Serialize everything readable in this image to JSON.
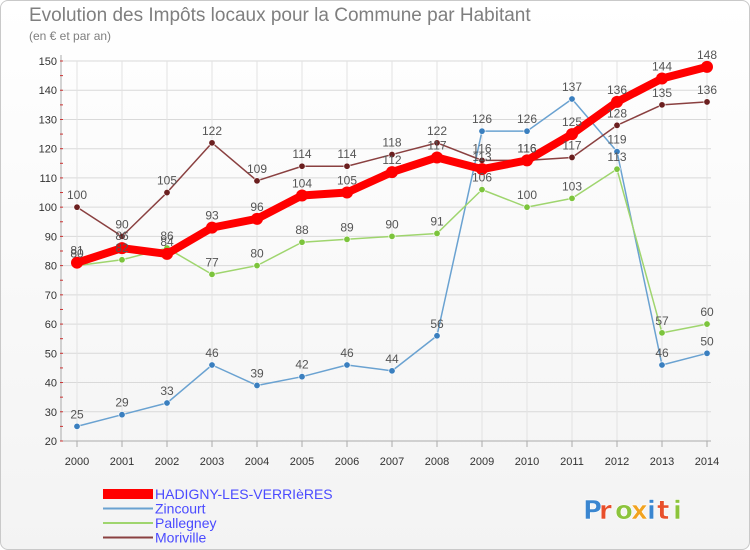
{
  "header": {
    "title": "Evolution des Impôts locaux pour la Commune par Habitant",
    "subtitle": "(en € et par an)"
  },
  "logo": {
    "text": "Proxiti",
    "colors": [
      "#3a86d0",
      "#e84f2b",
      "#8cc43c",
      "#f2a31f",
      "#3a86d0",
      "#e84f2b",
      "#8cc43c"
    ]
  },
  "chart_data": {
    "type": "line",
    "x": [
      2000,
      2001,
      2002,
      2003,
      2004,
      2005,
      2006,
      2007,
      2008,
      2009,
      2010,
      2011,
      2012,
      2013,
      2014
    ],
    "ylim": [
      20,
      150
    ],
    "yticks": [
      20,
      30,
      40,
      50,
      60,
      70,
      80,
      90,
      100,
      110,
      120,
      130,
      140,
      150
    ],
    "grid": true,
    "legend_position": "bottom-left",
    "series": [
      {
        "name": "HADIGNY-LES-VERRIèRES",
        "color": "#ff0000",
        "line_color": "#ff0000",
        "marker_color": "#ff0000",
        "emphasis": true,
        "values": [
          81,
          86,
          84,
          93,
          96,
          104,
          105,
          112,
          117,
          113,
          116,
          125,
          136,
          144,
          148
        ]
      },
      {
        "name": "Zincourt",
        "color": "#5b9bd5",
        "line_color": "#6aa2d1",
        "marker_color": "#3a7fbf",
        "values": [
          25,
          29,
          33,
          46,
          39,
          42,
          46,
          44,
          56,
          126,
          126,
          137,
          119,
          46,
          50
        ]
      },
      {
        "name": "Pallegney",
        "color": "#92d050",
        "line_color": "#9fd56e",
        "marker_color": "#7cc43c",
        "values": [
          80,
          82,
          86,
          77,
          80,
          88,
          89,
          90,
          91,
          106,
          100,
          103,
          113,
          57,
          60
        ]
      },
      {
        "name": "Moriville",
        "color": "#7f3f3f",
        "line_color": "#8a4040",
        "marker_color": "#6b1f1f",
        "values": [
          100,
          90,
          105,
          122,
          109,
          114,
          114,
          118,
          122,
          116,
          116,
          117,
          128,
          135,
          136
        ]
      }
    ]
  }
}
